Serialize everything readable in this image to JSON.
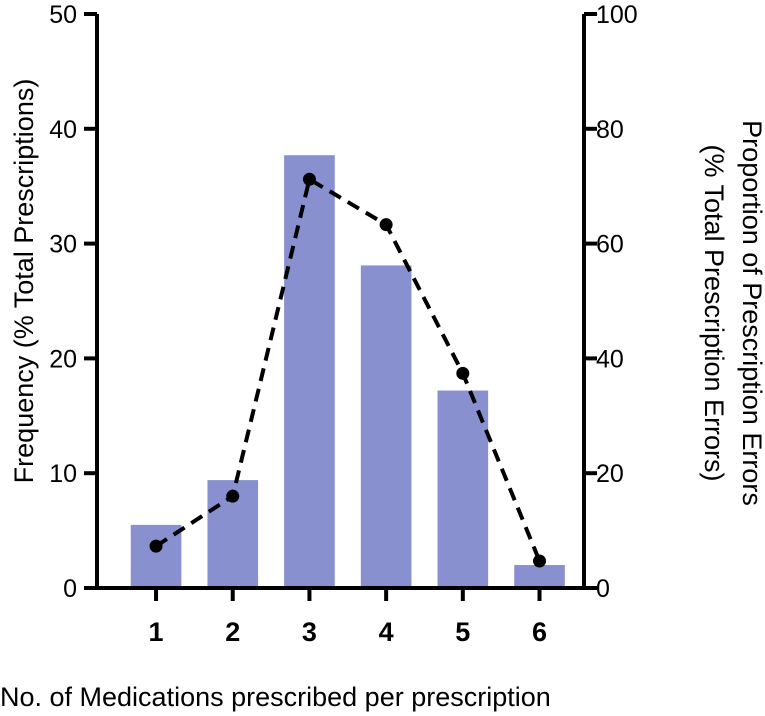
{
  "colors": {
    "bar": "#8890d0",
    "line": "#000000",
    "axis": "#000000",
    "background": "#ffffff"
  },
  "chart_data": {
    "type": "bar",
    "title": "",
    "categories": [
      "1",
      "2",
      "3",
      "4",
      "5",
      "6"
    ],
    "series": [
      {
        "name": "Frequency (% Total Prescriptions)",
        "type": "bar",
        "axis": "left",
        "values": [
          5.5,
          9.4,
          37.7,
          28.1,
          17.2,
          2.0
        ]
      },
      {
        "name": "Proportion of Prescription Errors (% Total Prescription Errors)",
        "type": "line",
        "style": "dashed-with-markers",
        "axis": "right",
        "values": [
          7.3,
          16.0,
          71.2,
          63.3,
          37.4,
          4.7
        ]
      }
    ],
    "xlabel": "No. of Medications prescribed per prescription",
    "ylabel_left": "Frequency (% Total Prescriptions)",
    "ylabel_right_line1": "Proportion of Prescription Errors",
    "ylabel_right_line2": "(% Total Prescription Errors)",
    "ylim_left": [
      0,
      50
    ],
    "yticks_left": [
      "0",
      "10",
      "20",
      "30",
      "40",
      "50"
    ],
    "ylim_right": [
      0,
      100
    ],
    "yticks_right": [
      "0",
      "20",
      "40",
      "60",
      "80",
      "100"
    ],
    "grid": false,
    "legend": "none"
  }
}
